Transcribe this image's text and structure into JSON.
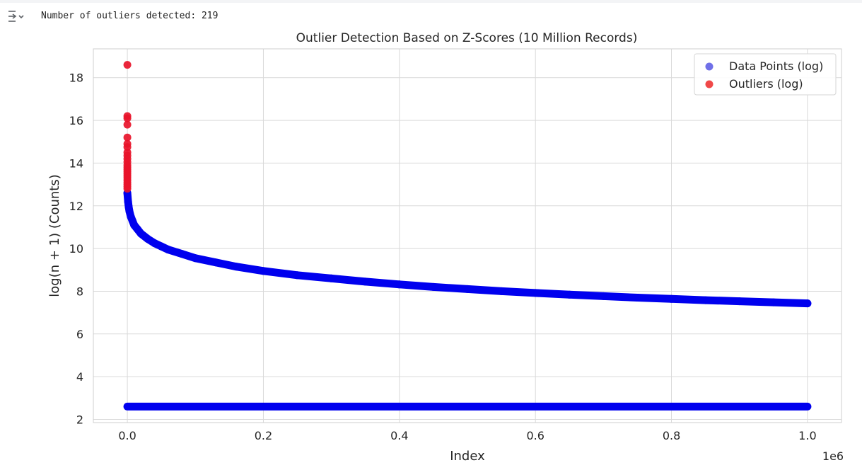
{
  "output": {
    "icon": "output-collapse-icon",
    "label": "Number of outliers detected:",
    "count": 219
  },
  "chart_data": {
    "type": "scatter",
    "title": "Outlier Detection Based on Z-Scores (10 Million Records)",
    "xlabel": "Index",
    "ylabel": "log(n + 1) (Counts)",
    "x_offset_label": "1e6",
    "xlim": [
      -50000,
      1050000
    ],
    "ylim": [
      1.85,
      19.35
    ],
    "x_ticks": [
      0,
      200000,
      400000,
      600000,
      800000,
      1000000
    ],
    "x_tick_labels": [
      "0.0",
      "0.2",
      "0.4",
      "0.6",
      "0.8",
      "1.0"
    ],
    "y_ticks": [
      2,
      4,
      6,
      8,
      10,
      12,
      14,
      16,
      18
    ],
    "y_tick_labels": [
      "2",
      "4",
      "6",
      "8",
      "10",
      "12",
      "14",
      "16",
      "18"
    ],
    "grid": true,
    "legend_position": "top-right",
    "series": [
      {
        "name": "Data Points (log)",
        "color": "#0000ee",
        "legend_color": "#7070e8",
        "points": [
          [
            0,
            12.6
          ],
          [
            1000,
            12.2
          ],
          [
            2000,
            11.95
          ],
          [
            3000,
            11.75
          ],
          [
            5000,
            11.5
          ],
          [
            7500,
            11.3
          ],
          [
            10000,
            11.1
          ],
          [
            15000,
            10.9
          ],
          [
            20000,
            10.7
          ],
          [
            30000,
            10.45
          ],
          [
            40000,
            10.25
          ],
          [
            50000,
            10.1
          ],
          [
            60000,
            9.95
          ],
          [
            80000,
            9.75
          ],
          [
            100000,
            9.55
          ],
          [
            130000,
            9.35
          ],
          [
            160000,
            9.15
          ],
          [
            200000,
            8.95
          ],
          [
            250000,
            8.75
          ],
          [
            300000,
            8.6
          ],
          [
            350000,
            8.45
          ],
          [
            400000,
            8.32
          ],
          [
            450000,
            8.2
          ],
          [
            500000,
            8.1
          ],
          [
            550000,
            8.0
          ],
          [
            600000,
            7.92
          ],
          [
            650000,
            7.84
          ],
          [
            700000,
            7.77
          ],
          [
            750000,
            7.7
          ],
          [
            800000,
            7.64
          ],
          [
            850000,
            7.58
          ],
          [
            900000,
            7.53
          ],
          [
            950000,
            7.48
          ],
          [
            1000000,
            7.43
          ]
        ],
        "baseline": {
          "x_start": 0,
          "x_end": 1000000,
          "y": 2.6
        }
      },
      {
        "name": "Outliers (log)",
        "color": "#e8132a",
        "legend_color": "#f04848",
        "points": [
          [
            0,
            18.6
          ],
          [
            0,
            16.2
          ],
          [
            0,
            16.1
          ],
          [
            0,
            15.8
          ],
          [
            0,
            15.2
          ],
          [
            0,
            14.9
          ],
          [
            0,
            14.75
          ],
          [
            0,
            14.5
          ],
          [
            0,
            14.35
          ],
          [
            0,
            14.2
          ],
          [
            0,
            14.05
          ],
          [
            0,
            13.9
          ],
          [
            0,
            13.8
          ],
          [
            0,
            13.7
          ],
          [
            0,
            13.6
          ],
          [
            0,
            13.5
          ],
          [
            0,
            13.4
          ],
          [
            0,
            13.3
          ],
          [
            0,
            13.2
          ],
          [
            0,
            13.1
          ],
          [
            0,
            13.0
          ],
          [
            0,
            12.9
          ],
          [
            0,
            12.8
          ]
        ]
      }
    ]
  }
}
